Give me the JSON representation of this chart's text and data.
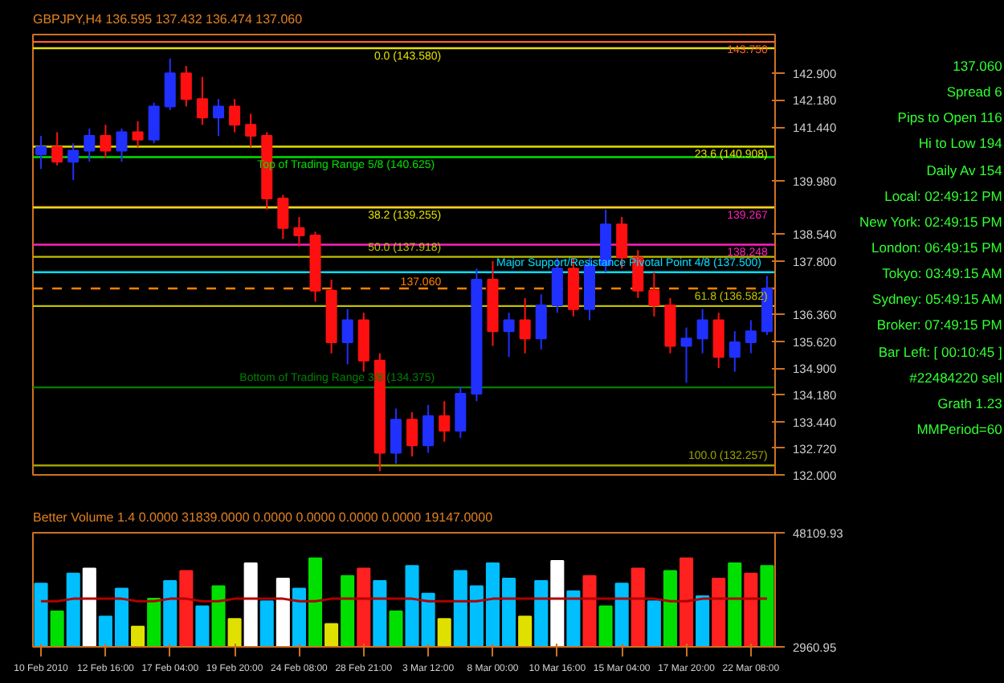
{
  "chart_data": [
    {
      "type": "candlestick",
      "title": "GBPJPY,H4  136.595 137.432 136.474 137.060",
      "categories": [
        null,
        null,
        null,
        null,
        null,
        null,
        null,
        null,
        null,
        null,
        null,
        null,
        null,
        null,
        null,
        null,
        null,
        null,
        null,
        null,
        null,
        null,
        null,
        null,
        null,
        null,
        null,
        null,
        null,
        null,
        null,
        null,
        null,
        null,
        null,
        null,
        null,
        null,
        null,
        null,
        null,
        null,
        null,
        null,
        null,
        null
      ],
      "ohlc": [
        [
          140.7,
          141.2,
          140.3,
          140.9
        ],
        [
          140.9,
          141.3,
          140.4,
          140.5
        ],
        [
          140.5,
          141.0,
          140.0,
          140.8
        ],
        [
          140.8,
          141.4,
          140.5,
          141.2
        ],
        [
          141.2,
          141.5,
          140.6,
          140.8
        ],
        [
          140.8,
          141.4,
          140.5,
          141.3
        ],
        [
          141.3,
          141.6,
          140.9,
          141.1
        ],
        [
          141.1,
          142.1,
          141.0,
          142.0
        ],
        [
          142.0,
          143.3,
          141.9,
          142.9
        ],
        [
          142.9,
          143.1,
          142.0,
          142.2
        ],
        [
          142.2,
          142.8,
          141.5,
          141.7
        ],
        [
          141.7,
          142.2,
          141.2,
          142.0
        ],
        [
          142.0,
          142.2,
          141.3,
          141.5
        ],
        [
          141.5,
          141.8,
          140.9,
          141.2
        ],
        [
          141.2,
          141.3,
          139.2,
          139.5
        ],
        [
          139.5,
          139.6,
          138.4,
          138.7
        ],
        [
          138.7,
          139.0,
          138.2,
          138.5
        ],
        [
          138.5,
          138.6,
          136.7,
          137.0
        ],
        [
          137.0,
          137.3,
          135.3,
          135.6
        ],
        [
          135.6,
          136.5,
          135.0,
          136.2
        ],
        [
          136.2,
          136.4,
          134.8,
          135.1
        ],
        [
          135.1,
          135.3,
          132.1,
          132.6
        ],
        [
          132.6,
          133.8,
          132.3,
          133.5
        ],
        [
          133.5,
          133.7,
          132.5,
          132.8
        ],
        [
          132.8,
          133.9,
          132.6,
          133.6
        ],
        [
          133.6,
          134.0,
          132.9,
          133.2
        ],
        [
          133.2,
          134.4,
          133.0,
          134.2
        ],
        [
          134.2,
          137.6,
          134.0,
          137.3
        ],
        [
          137.3,
          137.8,
          135.5,
          135.9
        ],
        [
          135.9,
          136.4,
          135.2,
          136.2
        ],
        [
          136.2,
          136.8,
          135.3,
          135.7
        ],
        [
          135.7,
          136.9,
          135.4,
          136.6
        ],
        [
          136.6,
          137.9,
          136.4,
          137.6
        ],
        [
          137.6,
          137.9,
          136.3,
          136.5
        ],
        [
          136.5,
          137.9,
          136.2,
          137.7
        ],
        [
          137.7,
          139.2,
          137.5,
          138.8
        ],
        [
          138.8,
          139.0,
          137.6,
          137.9
        ],
        [
          137.9,
          138.1,
          136.8,
          137.0
        ],
        [
          137.0,
          137.5,
          136.3,
          136.6
        ],
        [
          136.6,
          136.8,
          135.3,
          135.5
        ],
        [
          135.5,
          136.0,
          134.5,
          135.7
        ],
        [
          135.7,
          136.5,
          135.3,
          136.2
        ],
        [
          136.2,
          136.4,
          134.9,
          135.2
        ],
        [
          135.2,
          135.9,
          134.8,
          135.6
        ],
        [
          135.6,
          136.2,
          135.3,
          135.9
        ],
        [
          135.9,
          137.4,
          135.8,
          137.06
        ]
      ],
      "ylim": [
        132.0,
        143.95
      ],
      "yticks": [
        {
          "value": 132.0,
          "label": "132.000"
        },
        {
          "value": 132.72,
          "label": "132.720"
        },
        {
          "value": 133.44,
          "label": "133.440"
        },
        {
          "value": 134.18,
          "label": "134.180"
        },
        {
          "value": 134.9,
          "label": "134.900"
        },
        {
          "value": 135.62,
          "label": "135.620"
        },
        {
          "value": 136.36,
          "label": "136.360"
        },
        {
          "value": 137.8,
          "label": "137.800"
        },
        {
          "value": 138.54,
          "label": "138.540"
        },
        {
          "value": 139.98,
          "label": "139.980"
        },
        {
          "value": 141.44,
          "label": "141.440"
        },
        {
          "value": 142.18,
          "label": "142.180"
        },
        {
          "value": 142.9,
          "label": "142.900"
        }
      ],
      "tick_labels": "y",
      "grid": false,
      "ref_lines": [
        {
          "axis": "y",
          "value": 143.75,
          "label": "143.750",
          "color": "#ff6030"
        },
        {
          "axis": "y",
          "value": 143.58,
          "label": "0.0 (143.580)",
          "color": "#e0e000"
        },
        {
          "axis": "y",
          "value": 140.908,
          "label": "23.6 (140.908)",
          "color": "#e0e000"
        },
        {
          "axis": "y",
          "value": 140.625,
          "label": "Top of Trading Range  5/8  (140.625)",
          "color": "#00e000"
        },
        {
          "axis": "y",
          "value": 139.267,
          "label": "139.267",
          "color": "#ff20c0"
        },
        {
          "axis": "y",
          "value": 139.255,
          "label": "38.2 (139.255)",
          "color": "#e0e000"
        },
        {
          "axis": "y",
          "value": 138.248,
          "label": "138.248",
          "color": "#ff20c0"
        },
        {
          "axis": "y",
          "value": 137.918,
          "label": "50.0 (137.918)",
          "color": "#c0c000"
        },
        {
          "axis": "y",
          "value": 137.5,
          "label": "Major Support/Resistance Pivotal Point  4/8  (137.500)",
          "color": "#00e0ff"
        },
        {
          "axis": "y",
          "value": 137.06,
          "label": "137.060",
          "color": "#ff8000",
          "line_style": "dashed"
        },
        {
          "axis": "y",
          "value": 136.582,
          "label": "61.8 (136.582)",
          "color": "#c0c000"
        },
        {
          "axis": "y",
          "value": 134.375,
          "label": "Bottom of Trading Range  3/8  (134.375)",
          "color": "#008000"
        },
        {
          "axis": "y",
          "value": 132.257,
          "label": "100.0 (132.257)",
          "color": "#a0a000"
        }
      ],
      "annotations": [
        "137.060",
        "Spread  6",
        "Pips to Open  116",
        "Hi to Low  194",
        "Daily Av  154",
        "Local:  02:49:12 PM",
        "New York:  02:49:15 PM",
        "London:  06:49:15 PM",
        "Tokyo:  03:49:15 AM",
        "Sydney:  05:49:15 AM",
        "Broker:  07:49:15 PM",
        "Bar Left:  [ 00:10:45 ]",
        "#22484220 sell",
        "Grath 1.23",
        "MMPeriod=60"
      ]
    },
    {
      "type": "bar",
      "title": "Better Volume 1.4 0.0000 31839.0000 0.0000 0.0000 0.0000 0.0000 19147.0000",
      "categories": [
        "10 Feb 2010",
        null,
        null,
        null,
        "12 Feb 16:00",
        null,
        null,
        null,
        "17 Feb 04:00",
        null,
        null,
        null,
        "19 Feb 20:00",
        null,
        null,
        null,
        "24 Feb 08:00",
        null,
        null,
        null,
        "28 Feb 21:00",
        null,
        null,
        null,
        "3 Mar 12:00",
        null,
        null,
        null,
        "8 Mar 00:00",
        null,
        null,
        null,
        "10 Mar 16:00",
        null,
        null,
        null,
        "15 Mar 04:00",
        null,
        null,
        null,
        "17 Mar 20:00",
        null,
        null,
        null,
        "22 Mar 08:00",
        null
      ],
      "series": [
        {
          "type": "bar",
          "values": [
            28000,
            17000,
            32000,
            34000,
            15000,
            26000,
            11000,
            22000,
            29000,
            33000,
            19000,
            27000,
            14000,
            36000,
            21000,
            30000,
            26000,
            38000,
            12000,
            31000,
            34000,
            29000,
            17000,
            35000,
            24000,
            14000,
            33000,
            27000,
            36000,
            30000,
            15000,
            29000,
            37000,
            25000,
            31000,
            19000,
            28000,
            34000,
            21000,
            33000,
            38000,
            23000,
            30000,
            36000,
            32000,
            35000
          ],
          "colors": [
            "#00bfff",
            "#00e000",
            "#00bfff",
            "#ffffff",
            "#00bfff",
            "#00bfff",
            "#e0e000",
            "#00e000",
            "#00bfff",
            "#ff2020",
            "#00bfff",
            "#00e000",
            "#e0e000",
            "#ffffff",
            "#00bfff",
            "#ffffff",
            "#00bfff",
            "#00e000",
            "#e0e000",
            "#00e000",
            "#ff2020",
            "#00bfff",
            "#00e000",
            "#00bfff",
            "#00bfff",
            "#e0e000",
            "#00bfff",
            "#00bfff",
            "#00bfff",
            "#00bfff",
            "#e0e000",
            "#00bfff",
            "#ffffff",
            "#00bfff",
            "#ff2020",
            "#00e000",
            "#00bfff",
            "#ff2020",
            "#00bfff",
            "#00e000",
            "#ff2020",
            "#00bfff",
            "#ff2020",
            "#00e000",
            "#ff2020",
            "#00e000"
          ]
        },
        {
          "type": "line",
          "color": "#b00000",
          "values": [
            21000,
            21000,
            22000,
            22000,
            22000,
            22000,
            21000,
            21000,
            22000,
            22000,
            21000,
            21000,
            22000,
            22000,
            22000,
            22000,
            21000,
            21000,
            22000,
            22000,
            22000,
            22000,
            22000,
            22000,
            21000,
            21000,
            21000,
            21000,
            22000,
            22000,
            22000,
            22000,
            22000,
            22000,
            22000,
            22000,
            22000,
            22000,
            22000,
            21000,
            21000,
            22000,
            22000,
            22000,
            22000,
            22000
          ]
        }
      ],
      "ylim": [
        2960.95,
        48109.93
      ],
      "yticks": [
        {
          "value": 2960.95,
          "label": "2960.95"
        },
        {
          "value": 48109.93,
          "label": "48109.93"
        }
      ],
      "grid": false
    }
  ]
}
